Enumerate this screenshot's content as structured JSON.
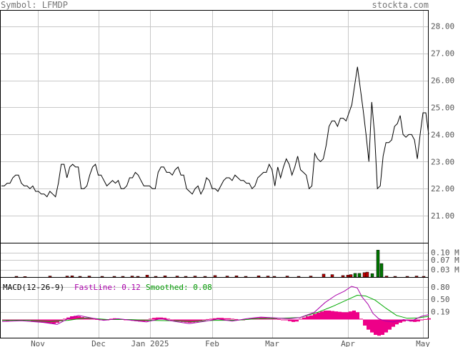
{
  "header": {
    "symbol_label": "Symbol: LFMDP",
    "site": "stockta.com"
  },
  "colors": {
    "price_line": "#000000",
    "grid": "#c8c8c8",
    "frame": "#000000",
    "volume_up": "#007700",
    "volume_down": "#bb0000",
    "macd_fast": "#aa00aa",
    "macd_smoothed": "#00aa00",
    "macd_hist": "#ee0088",
    "label_text": "#555555"
  },
  "chart_data": [
    {
      "type": "line",
      "name": "price",
      "y_ticks": [
        "28.00",
        "27.00",
        "26.00",
        "25.00",
        "24.00",
        "23.00",
        "22.00",
        "21.00"
      ],
      "ylim": [
        20.0,
        28.6
      ],
      "values": [
        22.1,
        22.1,
        22.2,
        22.2,
        22.4,
        22.5,
        22.5,
        22.2,
        22.1,
        22.1,
        22.0,
        22.1,
        21.9,
        21.9,
        21.8,
        21.8,
        21.7,
        21.9,
        21.8,
        21.7,
        22.2,
        22.9,
        22.9,
        22.4,
        22.8,
        22.9,
        22.8,
        22.8,
        22.0,
        22.0,
        22.1,
        22.5,
        22.8,
        22.9,
        22.5,
        22.5,
        22.3,
        22.1,
        22.2,
        22.3,
        22.2,
        22.3,
        22.0,
        22.0,
        22.1,
        22.4,
        22.4,
        22.6,
        22.5,
        22.3,
        22.1,
        22.1,
        22.1,
        22.0,
        22.0,
        22.6,
        22.8,
        22.8,
        22.6,
        22.6,
        22.5,
        22.7,
        22.8,
        22.5,
        22.5,
        22.0,
        21.9,
        21.8,
        22.0,
        22.1,
        21.8,
        22.0,
        22.4,
        22.3,
        22.0,
        22.0,
        21.9,
        22.1,
        22.3,
        22.4,
        22.4,
        22.3,
        22.5,
        22.4,
        22.3,
        22.3,
        22.2,
        22.2,
        22.0,
        22.1,
        22.4,
        22.5,
        22.6,
        22.6,
        22.9,
        22.7,
        22.1,
        22.8,
        22.4,
        22.8,
        23.1,
        22.9,
        22.5,
        22.8,
        23.2,
        22.7,
        22.6,
        22.5,
        22.0,
        22.1,
        23.3,
        23.1,
        23.0,
        23.1,
        23.6,
        24.3,
        24.5,
        24.5,
        24.3,
        24.6,
        24.6,
        24.5,
        24.8,
        25.1,
        25.8,
        26.5,
        25.7,
        24.9,
        24.0,
        23.0,
        25.2,
        24.0,
        22.0,
        22.1,
        23.2,
        23.7,
        23.7,
        23.8,
        24.3,
        24.4,
        24.7,
        24.0,
        23.9,
        24.0,
        24.0,
        23.8,
        23.1,
        24.0,
        24.8,
        24.8,
        24.0
      ]
    },
    {
      "type": "bar",
      "name": "volume",
      "y_ticks": [
        "0.10 M",
        "0.07 M",
        "0.03 M"
      ],
      "ylim": [
        0,
        0.14
      ],
      "bars": [
        [
          23,
          0.003
        ],
        [
          35,
          0.002
        ],
        [
          70,
          0.004
        ],
        [
          94,
          0.004
        ],
        [
          101,
          0.005
        ],
        [
          112,
          0.003
        ],
        [
          125,
          0.004
        ],
        [
          143,
          0.003
        ],
        [
          160,
          0.003
        ],
        [
          172,
          0.003
        ],
        [
          185,
          0.004
        ],
        [
          193,
          0.003
        ],
        [
          206,
          0.008
        ],
        [
          218,
          0.003
        ],
        [
          231,
          0.005
        ],
        [
          248,
          0.004
        ],
        [
          260,
          0.003
        ],
        [
          273,
          0.004
        ],
        [
          287,
          0.003
        ],
        [
          301,
          0.006
        ],
        [
          318,
          0.004
        ],
        [
          331,
          0.005
        ],
        [
          344,
          0.003
        ],
        [
          362,
          0.005
        ],
        [
          375,
          0.004
        ],
        [
          384,
          0.003
        ],
        [
          402,
          0.004
        ],
        [
          418,
          0.003
        ],
        [
          435,
          0.004
        ],
        [
          453,
          0.012
        ],
        [
          465,
          0.01
        ],
        [
          480,
          0.006
        ],
        [
          487,
          0.008
        ],
        [
          491,
          0.01
        ],
        [
          497,
          0.015
        ],
        [
          503,
          0.015
        ],
        [
          510,
          0.018
        ],
        [
          514,
          0.02
        ],
        [
          521,
          0.014
        ],
        [
          529,
          0.11
        ],
        [
          534,
          0.055
        ],
        [
          541,
          0.004
        ],
        [
          553,
          0.003
        ],
        [
          570,
          0.003
        ],
        [
          583,
          0.004
        ],
        [
          593,
          0.003
        ]
      ],
      "up_bars": [
        483,
        497,
        503,
        521,
        529,
        534
      ]
    },
    {
      "type": "line",
      "name": "MACD",
      "indicator_label": "MACD(12-26-9)",
      "fastline_label": "FastLine: 0.12",
      "smoothed_label": "Smoothed: 0.08",
      "y_ticks": [
        "0.80",
        "0.50",
        "0.19"
      ],
      "ylim": [
        -0.45,
        1.05
      ],
      "fast": [
        [
          3,
          -0.05
        ],
        [
          30,
          -0.03
        ],
        [
          60,
          -0.07
        ],
        [
          80,
          -0.12
        ],
        [
          95,
          0.02
        ],
        [
          110,
          0.1
        ],
        [
          125,
          0.05
        ],
        [
          145,
          -0.02
        ],
        [
          165,
          0.02
        ],
        [
          185,
          -0.02
        ],
        [
          205,
          -0.06
        ],
        [
          225,
          0.02
        ],
        [
          245,
          -0.05
        ],
        [
          265,
          -0.1
        ],
        [
          285,
          -0.05
        ],
        [
          305,
          0.01
        ],
        [
          325,
          -0.04
        ],
        [
          345,
          0.02
        ],
        [
          365,
          0.06
        ],
        [
          385,
          0.04
        ],
        [
          405,
          0.02
        ],
        [
          420,
          0.05
        ],
        [
          440,
          0.18
        ],
        [
          455,
          0.42
        ],
        [
          470,
          0.6
        ],
        [
          482,
          0.7
        ],
        [
          492,
          0.82
        ],
        [
          500,
          0.78
        ],
        [
          507,
          0.55
        ],
        [
          515,
          0.38
        ],
        [
          522,
          0.15
        ],
        [
          530,
          0.02
        ],
        [
          540,
          -0.04
        ],
        [
          550,
          -0.06
        ],
        [
          565,
          0.0
        ],
        [
          575,
          -0.04
        ],
        [
          590,
          0.08
        ],
        [
          600,
          0.12
        ]
      ],
      "smoothed": [
        [
          3,
          -0.02
        ],
        [
          40,
          -0.02
        ],
        [
          70,
          -0.05
        ],
        [
          95,
          -0.02
        ],
        [
          120,
          0.04
        ],
        [
          150,
          0.0
        ],
        [
          180,
          0.0
        ],
        [
          210,
          -0.02
        ],
        [
          240,
          -0.03
        ],
        [
          270,
          -0.05
        ],
        [
          300,
          -0.02
        ],
        [
          330,
          -0.02
        ],
        [
          360,
          0.02
        ],
        [
          390,
          0.03
        ],
        [
          420,
          0.05
        ],
        [
          445,
          0.18
        ],
        [
          465,
          0.32
        ],
        [
          485,
          0.48
        ],
        [
          500,
          0.6
        ],
        [
          512,
          0.58
        ],
        [
          525,
          0.48
        ],
        [
          540,
          0.28
        ],
        [
          555,
          0.1
        ],
        [
          570,
          0.03
        ],
        [
          585,
          0.04
        ],
        [
          600,
          0.08
        ]
      ],
      "hist": [
        [
          3,
          -0.03
        ],
        [
          8,
          -0.04
        ],
        [
          13,
          -0.03
        ],
        [
          18,
          -0.02
        ],
        [
          23,
          -0.02
        ],
        [
          28,
          -0.01
        ],
        [
          33,
          -0.02
        ],
        [
          38,
          -0.03
        ],
        [
          43,
          -0.05
        ],
        [
          48,
          -0.06
        ],
        [
          53,
          -0.07
        ],
        [
          58,
          -0.08
        ],
        [
          63,
          -0.08
        ],
        [
          68,
          -0.09
        ],
        [
          73,
          -0.1
        ],
        [
          78,
          -0.08
        ],
        [
          83,
          -0.04
        ],
        [
          88,
          0.02
        ],
        [
          93,
          0.05
        ],
        [
          98,
          0.08
        ],
        [
          103,
          0.09
        ],
        [
          108,
          0.08
        ],
        [
          113,
          0.06
        ],
        [
          118,
          0.04
        ],
        [
          123,
          0.03
        ],
        [
          128,
          0.02
        ],
        [
          133,
          0.01
        ],
        [
          138,
          -0.01
        ],
        [
          143,
          -0.02
        ],
        [
          148,
          -0.02
        ],
        [
          153,
          0.02
        ],
        [
          158,
          0.03
        ],
        [
          163,
          0.02
        ],
        [
          168,
          0.01
        ],
        [
          173,
          0.0
        ],
        [
          178,
          -0.02
        ],
        [
          183,
          -0.03
        ],
        [
          188,
          -0.04
        ],
        [
          193,
          -0.05
        ],
        [
          198,
          -0.05
        ],
        [
          203,
          -0.04
        ],
        [
          208,
          0.02
        ],
        [
          213,
          0.04
        ],
        [
          218,
          0.05
        ],
        [
          223,
          0.05
        ],
        [
          228,
          0.04
        ],
        [
          233,
          0.02
        ],
        [
          238,
          -0.02
        ],
        [
          243,
          -0.04
        ],
        [
          248,
          -0.05
        ],
        [
          253,
          -0.06
        ],
        [
          258,
          -0.07
        ],
        [
          263,
          -0.08
        ],
        [
          268,
          -0.07
        ],
        [
          273,
          -0.06
        ],
        [
          278,
          -0.04
        ],
        [
          283,
          -0.02
        ],
        [
          288,
          0.01
        ],
        [
          293,
          0.02
        ],
        [
          298,
          0.03
        ],
        [
          303,
          0.04
        ],
        [
          308,
          0.04
        ],
        [
          313,
          0.03
        ],
        [
          318,
          0.03
        ],
        [
          323,
          0.02
        ],
        [
          328,
          0.01
        ],
        [
          333,
          -0.01
        ],
        [
          338,
          -0.02
        ],
        [
          343,
          0.01
        ],
        [
          348,
          0.03
        ],
        [
          353,
          0.04
        ],
        [
          358,
          0.04
        ],
        [
          363,
          0.05
        ],
        [
          368,
          0.05
        ],
        [
          373,
          0.04
        ],
        [
          378,
          0.03
        ],
        [
          383,
          0.02
        ],
        [
          388,
          0.01
        ],
        [
          393,
          0.0
        ],
        [
          398,
          -0.02
        ],
        [
          403,
          -0.04
        ],
        [
          408,
          -0.06
        ],
        [
          413,
          -0.05
        ],
        [
          418,
          0.02
        ],
        [
          423,
          0.05
        ],
        [
          428,
          0.08
        ],
        [
          433,
          0.1
        ],
        [
          438,
          0.14
        ],
        [
          443,
          0.17
        ],
        [
          448,
          0.2
        ],
        [
          453,
          0.22
        ],
        [
          458,
          0.22
        ],
        [
          463,
          0.21
        ],
        [
          468,
          0.2
        ],
        [
          473,
          0.19
        ],
        [
          478,
          0.18
        ],
        [
          483,
          0.18
        ],
        [
          488,
          0.2
        ],
        [
          493,
          0.22
        ],
        [
          498,
          0.18
        ],
        [
          503,
          0.02
        ],
        [
          508,
          -0.15
        ],
        [
          513,
          -0.25
        ],
        [
          518,
          -0.32
        ],
        [
          523,
          -0.38
        ],
        [
          528,
          -0.4
        ],
        [
          533,
          -0.38
        ],
        [
          538,
          -0.32
        ],
        [
          543,
          -0.25
        ],
        [
          548,
          -0.18
        ],
        [
          553,
          -0.12
        ],
        [
          558,
          -0.08
        ],
        [
          563,
          -0.05
        ],
        [
          568,
          -0.03
        ],
        [
          573,
          -0.05
        ],
        [
          578,
          -0.06
        ],
        [
          583,
          -0.05
        ],
        [
          588,
          -0.02
        ],
        [
          593,
          0.01
        ],
        [
          598,
          0.03
        ]
      ]
    }
  ],
  "x_axis": {
    "labels": [
      "Nov",
      "Dec",
      "Jan 2025",
      "Feb",
      "Mar",
      "Apr",
      "May"
    ],
    "positions": [
      53,
      138,
      210,
      297,
      381,
      487,
      592
    ]
  }
}
